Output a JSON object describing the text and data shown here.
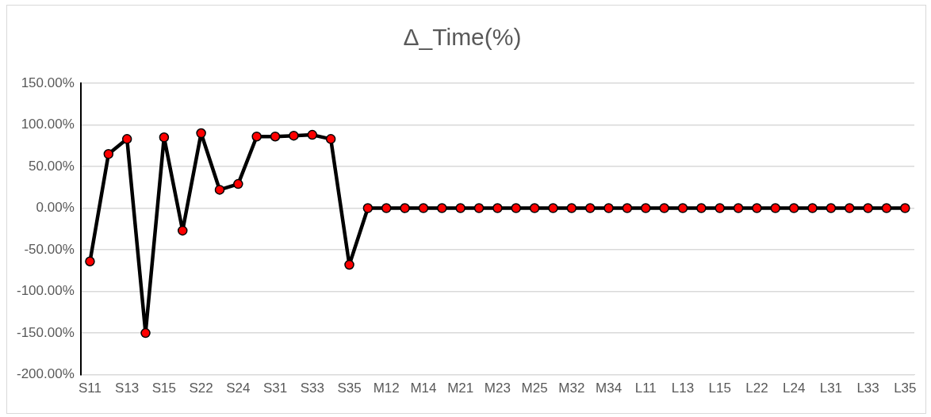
{
  "chart_data": {
    "type": "line",
    "title": "Δ_Time(%)",
    "categories": [
      "S11",
      null,
      "S13",
      null,
      "S15",
      null,
      "S22",
      null,
      "S24",
      null,
      "S31",
      null,
      "S33",
      null,
      "S35",
      null,
      "M12",
      null,
      "M14",
      null,
      "M21",
      null,
      "M23",
      null,
      "M25",
      null,
      "M32",
      null,
      "M34",
      null,
      "L11",
      null,
      "L13",
      null,
      "L15",
      null,
      "L22",
      null,
      "L24",
      null,
      "L31",
      null,
      "L33",
      null,
      "L35"
    ],
    "series": [
      {
        "color": "#000000",
        "values": [
          -64,
          65,
          83,
          -150,
          85,
          -27,
          90,
          22,
          29,
          86,
          86,
          87,
          88,
          83,
          -68,
          0,
          0,
          0,
          0,
          0,
          0,
          0,
          0,
          0,
          0,
          0,
          0,
          0,
          0,
          0,
          0,
          0,
          0,
          0,
          0,
          0,
          0,
          0,
          0,
          0,
          0,
          0,
          0,
          0,
          0
        ]
      }
    ],
    "ylim": [
      -200,
      150
    ],
    "yticks": [
      {
        "value": -200,
        "label": "-200.00%"
      },
      {
        "value": -150,
        "label": "-150.00%"
      },
      {
        "value": -100,
        "label": "-100.00%"
      },
      {
        "value": -50,
        "label": "-50.00%"
      },
      {
        "value": 0,
        "label": "0.00%"
      },
      {
        "value": 50,
        "label": "50.00%"
      },
      {
        "value": 100,
        "label": "100.00%"
      },
      {
        "value": 150,
        "label": "150.00%"
      }
    ],
    "grid": "y",
    "legend": false,
    "marker": "circle",
    "line_style": "solid"
  }
}
